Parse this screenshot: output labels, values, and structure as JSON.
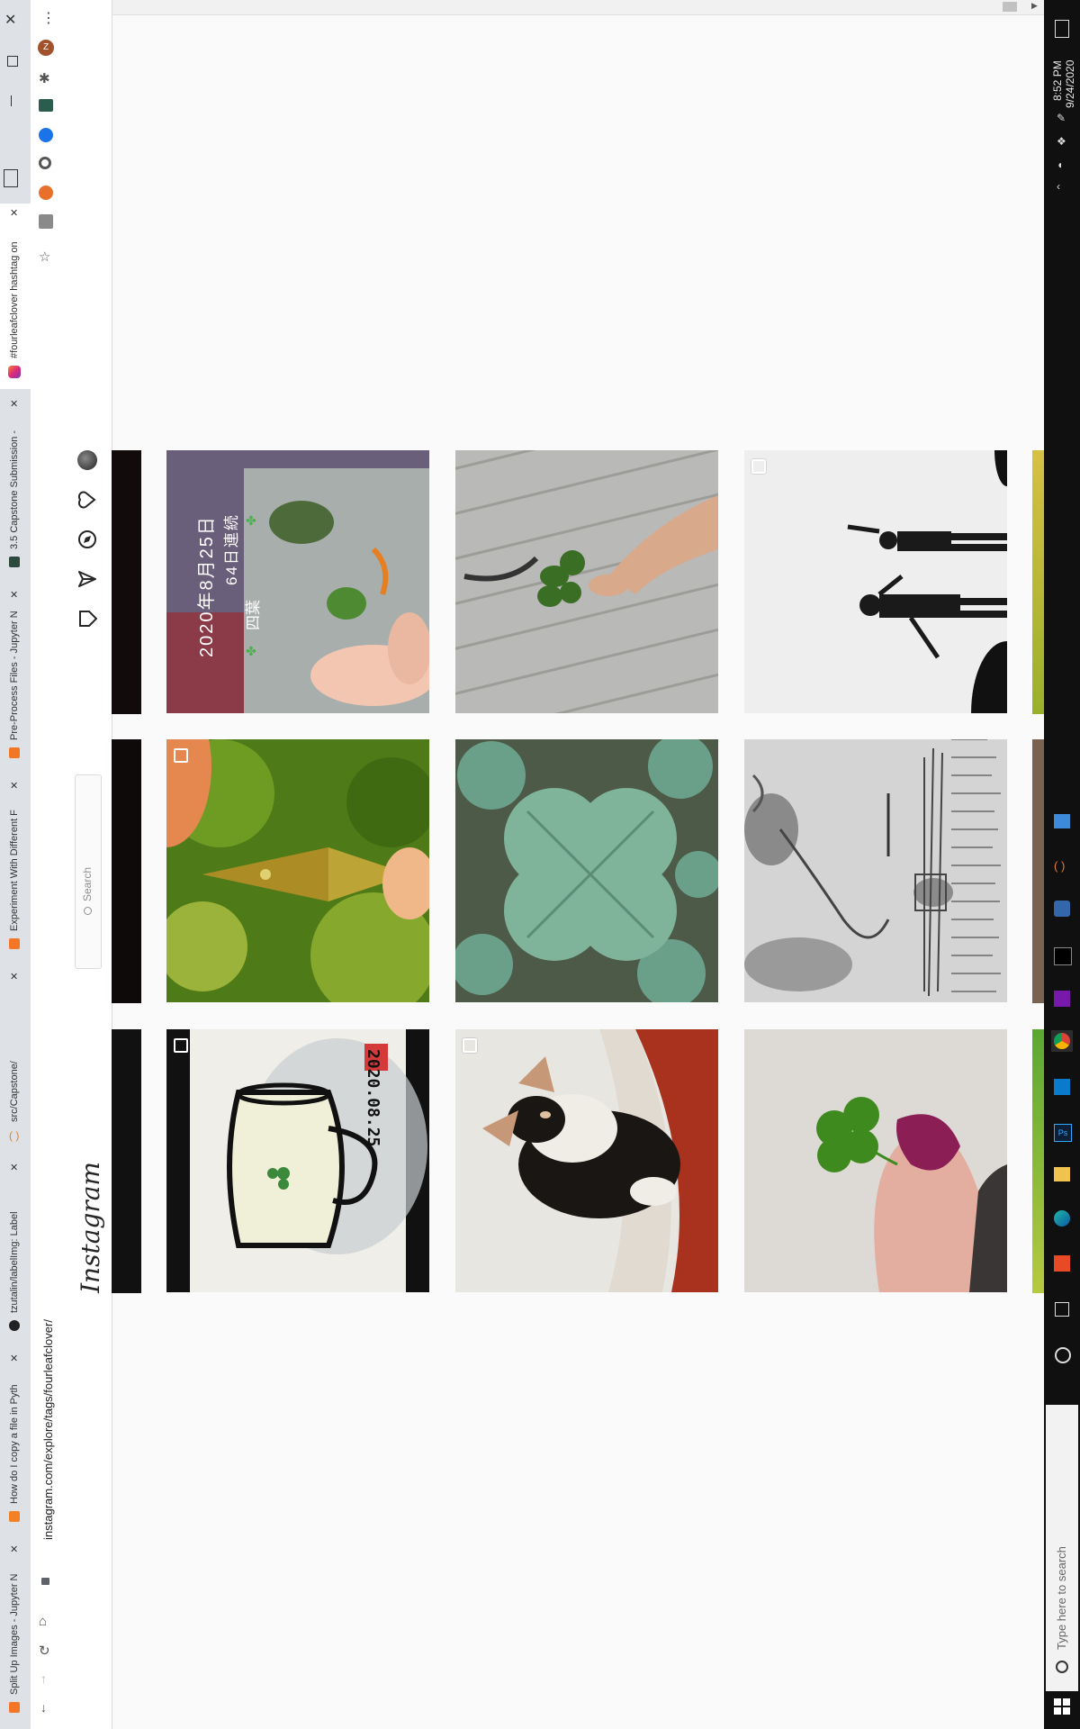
{
  "browser": {
    "address": "instagram.com/explore/tags/fourleafclover/",
    "tabs": [
      {
        "label": "#fourleafclover hashtag on"
      },
      {
        "label": "3.5 Capstone Submission -"
      },
      {
        "label": "Pre-Process Files - Jupyter N"
      },
      {
        "label": "Experiment With Different F"
      },
      {
        "label": "src/Capstone/"
      },
      {
        "label": "tzutalin/labelImg: Label"
      },
      {
        "label": "How do I copy a file in Pyth"
      },
      {
        "label": "Split Up Images - Jupyter N"
      }
    ]
  },
  "instagram": {
    "logo": "Instagram",
    "search_placeholder": "Search",
    "overlay_date": "2020年8月25日",
    "overlay_streak": "64日連続",
    "overlay_caption": "四葉",
    "card_text": "2020.08.25"
  },
  "taskbar": {
    "time": "8:52 PM",
    "date": "9/24/2020",
    "search_placeholder": "Type here to search"
  },
  "colors": {
    "accent_chrome": "#dee1e6",
    "taskbar": "#101010",
    "ig_border": "#dbdbdb"
  }
}
